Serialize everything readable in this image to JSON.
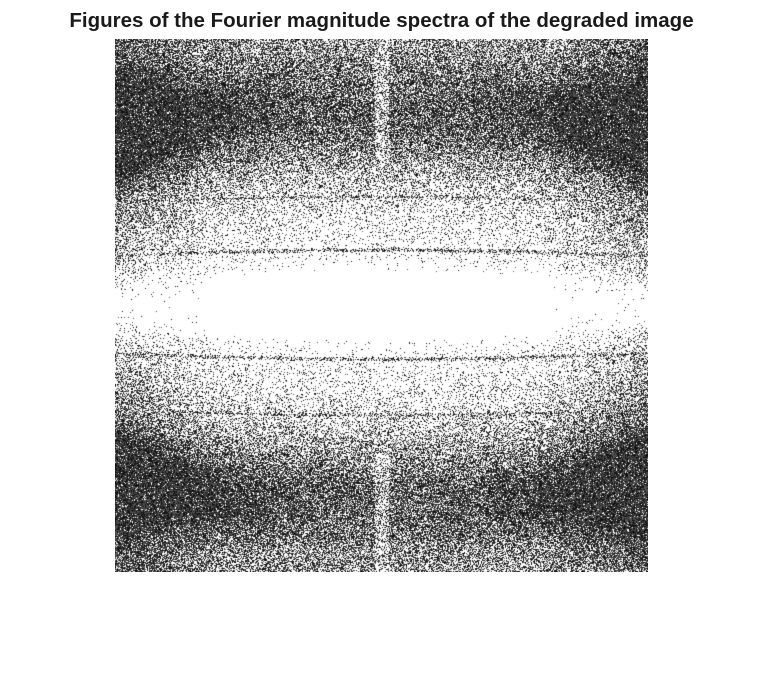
{
  "figure": {
    "title": "Figures of the Fourier magnitude spectra of the degraded image"
  },
  "image": {
    "description_name": "fourier-magnitude-spectrum",
    "colormap": "grayscale",
    "foreground_color": "#000000",
    "background_color": "#ffffff"
  }
}
